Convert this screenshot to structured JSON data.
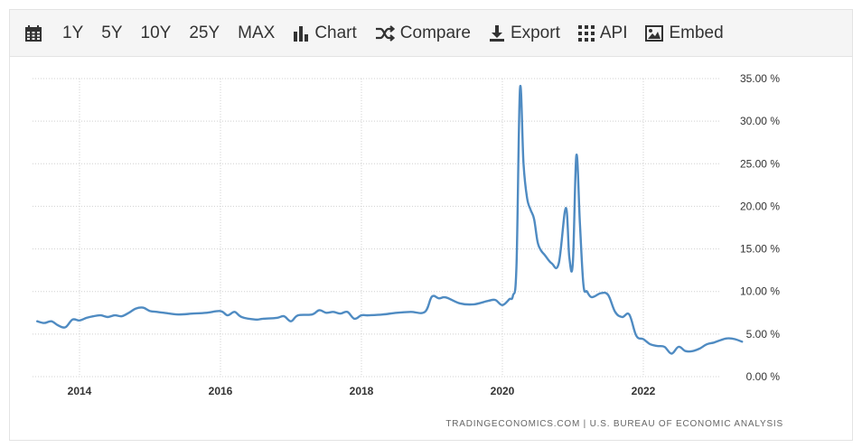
{
  "toolbar": {
    "calendar_icon": "calendar-icon",
    "ranges": [
      "1Y",
      "5Y",
      "10Y",
      "25Y",
      "MAX"
    ],
    "chart_label": "Chart",
    "compare_label": "Compare",
    "export_label": "Export",
    "api_label": "API",
    "embed_label": "Embed"
  },
  "source_text": "TRADINGECONOMICS.COM | U.S. BUREAU OF ECONOMIC ANALYSIS",
  "colors": {
    "line": "#4f8bc2",
    "grid": "#d0d0d0",
    "toolbar_bg": "#f5f5f5"
  },
  "chart_data": {
    "type": "line",
    "title": "",
    "xlabel": "",
    "ylabel": "",
    "x_ticks": [
      "2014",
      "2016",
      "2018",
      "2020",
      "2022"
    ],
    "y_ticks": [
      "0.00 %",
      "5.00 %",
      "10.00 %",
      "15.00 %",
      "20.00 %",
      "25.00 %",
      "30.00 %",
      "35.00 %"
    ],
    "ylim": [
      0,
      35
    ],
    "xlim": [
      2013.4,
      2023.4
    ],
    "grid": true,
    "y_axis_position": "right",
    "series": [
      {
        "x": [
          2013.4,
          2013.5,
          2013.6,
          2013.7,
          2013.8,
          2013.9,
          2014.0,
          2014.1,
          2014.2,
          2014.3,
          2014.4,
          2014.5,
          2014.6,
          2014.7,
          2014.8,
          2014.9,
          2015.0,
          2015.1,
          2015.2,
          2015.4,
          2015.6,
          2015.8,
          2016.0,
          2016.1,
          2016.2,
          2016.3,
          2016.5,
          2016.6,
          2016.8,
          2016.9,
          2017.0,
          2017.1,
          2017.3,
          2017.4,
          2017.5,
          2017.6,
          2017.7,
          2017.8,
          2017.9,
          2018.0,
          2018.1,
          2018.3,
          2018.5,
          2018.7,
          2018.9,
          2019.0,
          2019.1,
          2019.2,
          2019.4,
          2019.6,
          2019.8,
          2019.9,
          2020.0,
          2020.1,
          2020.15,
          2020.2,
          2020.25,
          2020.3,
          2020.35,
          2020.4,
          2020.45,
          2020.5,
          2020.55,
          2020.6,
          2020.7,
          2020.8,
          2020.9,
          2020.95,
          2021.0,
          2021.05,
          2021.1,
          2021.15,
          2021.2,
          2021.25,
          2021.3,
          2021.4,
          2021.5,
          2021.6,
          2021.7,
          2021.8,
          2021.9,
          2022.0,
          2022.1,
          2022.2,
          2022.3,
          2022.4,
          2022.5,
          2022.6,
          2022.7,
          2022.8,
          2022.9,
          2023.0,
          2023.1,
          2023.2,
          2023.3,
          2023.4
        ],
        "values": [
          6.5,
          6.3,
          6.5,
          6.0,
          5.8,
          6.7,
          6.6,
          6.9,
          7.1,
          7.2,
          7.0,
          7.2,
          7.1,
          7.5,
          8.0,
          8.1,
          7.7,
          7.6,
          7.5,
          7.3,
          7.4,
          7.5,
          7.7,
          7.2,
          7.6,
          7.0,
          6.7,
          6.8,
          6.9,
          7.1,
          6.5,
          7.2,
          7.3,
          7.8,
          7.5,
          7.6,
          7.4,
          7.6,
          6.8,
          7.2,
          7.2,
          7.3,
          7.5,
          7.6,
          7.6,
          9.4,
          9.2,
          9.3,
          8.6,
          8.5,
          8.9,
          9.0,
          8.4,
          9.1,
          9.5,
          13.0,
          33.8,
          25.0,
          21.0,
          19.6,
          18.5,
          15.8,
          14.8,
          14.3,
          13.3,
          13.3,
          19.8,
          14.0,
          13.4,
          26.0,
          18.0,
          10.8,
          10.0,
          9.4,
          9.4,
          9.8,
          9.6,
          7.6,
          7.0,
          7.3,
          4.8,
          4.4,
          3.8,
          3.6,
          3.5,
          2.7,
          3.5,
          3.0,
          3.0,
          3.3,
          3.8,
          4.0,
          4.3,
          4.5,
          4.4,
          4.1
        ]
      }
    ]
  }
}
